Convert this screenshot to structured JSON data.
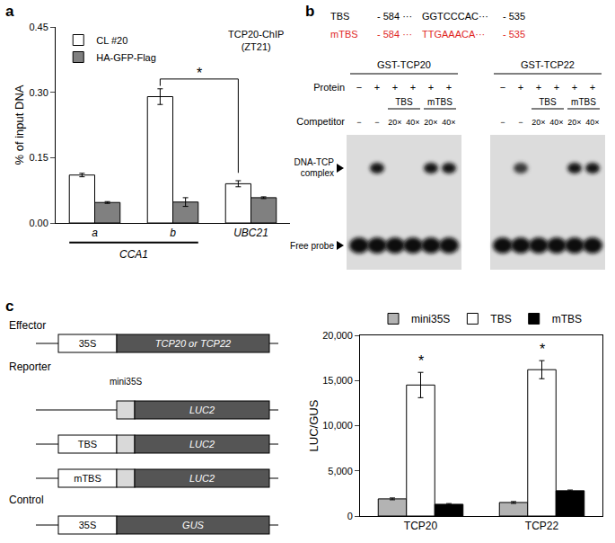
{
  "panel_labels": [
    "a",
    "b",
    "c"
  ],
  "chart_data": [
    {
      "type": "bar",
      "y_label": "% of input DNA",
      "annotations": [
        "TCP20-ChIP",
        "(ZT21)"
      ],
      "categories": [
        "a",
        "b",
        "UBC21"
      ],
      "category_group": {
        "label": "CCA1",
        "categories": [
          "a",
          "b"
        ]
      },
      "series": [
        {
          "name": "CL #20",
          "color": "#ffffff",
          "values": [
            0.11,
            0.29,
            0.09
          ],
          "errors": [
            0.004,
            0.018,
            0.007
          ]
        },
        {
          "name": "HA-GFP-Flag",
          "color": "#808080",
          "values": [
            0.047,
            0.048,
            0.058
          ],
          "errors": [
            0.002,
            0.01,
            0.002
          ]
        }
      ],
      "ylim": [
        0,
        0.45
      ],
      "yticks": [
        {
          "value": 0,
          "label": "0.00"
        },
        {
          "value": 0.15,
          "label": "0.15"
        },
        {
          "value": 0.3,
          "label": "0.30"
        },
        {
          "value": 0.45,
          "label": "0.45"
        }
      ],
      "legend": "top-left",
      "significance": [
        {
          "label": "*",
          "series": "CL #20",
          "from": "b",
          "to": "UBC21"
        }
      ]
    },
    {
      "type": "bar",
      "y_label": "LUC/GUS",
      "categories": [
        "TCP20",
        "TCP22"
      ],
      "series": [
        {
          "name": "mini35S",
          "color": "#b3b3b3",
          "values": [
            1900,
            1500
          ],
          "errors": [
            100,
            100
          ]
        },
        {
          "name": "TBS",
          "color": "#ffffff",
          "values": [
            14500,
            16200
          ],
          "errors": [
            1400,
            1000
          ]
        },
        {
          "name": "mTBS",
          "color": "#000000",
          "values": [
            1300,
            2800
          ],
          "errors": [
            80,
            80
          ]
        }
      ],
      "ylim": [
        0,
        20000
      ],
      "yticks": [
        0,
        {
          "value": 5000,
          "label": "5,000"
        },
        {
          "value": 10000,
          "label": "10,000"
        },
        {
          "value": 15000,
          "label": "15,000"
        },
        {
          "value": 20000,
          "label": "20,000"
        }
      ],
      "legend": "top",
      "significance": [
        {
          "label": "*",
          "series": "TBS",
          "at": "TCP20"
        },
        {
          "label": "*",
          "series": "TBS",
          "at": "TCP22"
        }
      ]
    }
  ],
  "gel": {
    "sequences": [
      {
        "name": "TBS",
        "start": "- 584 ···",
        "sequence": "GGTCCCAC···",
        "end": "- 535",
        "color": "#000000"
      },
      {
        "name": "mTBS",
        "start": "- 584 ···",
        "sequence": "TTGAAACA···",
        "end": "- 535",
        "color": "#e0271f"
      }
    ],
    "gels": [
      {
        "title": "GST-TCP20",
        "complex_bands": [
          false,
          true,
          false,
          false,
          true,
          true
        ]
      },
      {
        "title": "GST-TCP22",
        "complex_bands": [
          false,
          true,
          false,
          false,
          true,
          true
        ]
      }
    ],
    "protein_label": "Protein",
    "protein": [
      "−",
      "+",
      "+",
      "+",
      "+",
      "+"
    ],
    "competitor_types": [
      null,
      null,
      "TBS",
      "TBS",
      "mTBS",
      "mTBS"
    ],
    "competitor_label": "Competitor",
    "competitor": [
      "−",
      "−",
      "20×",
      "40×",
      "20×",
      "40×"
    ],
    "complex_label": [
      "DNA-TCP",
      "complex"
    ],
    "free_label": "Free probe"
  },
  "diagram": {
    "effector": {
      "label": "Effector",
      "promoter": "35S",
      "gene": "TCP20 or TCP22"
    },
    "reporter": {
      "label": "Reporter",
      "minimal": "mini35S",
      "gene": "LUC2",
      "elements": [
        null,
        "TBS",
        "mTBS"
      ]
    },
    "control": {
      "label": "Control",
      "promoter": "35S",
      "gene": "GUS"
    }
  }
}
